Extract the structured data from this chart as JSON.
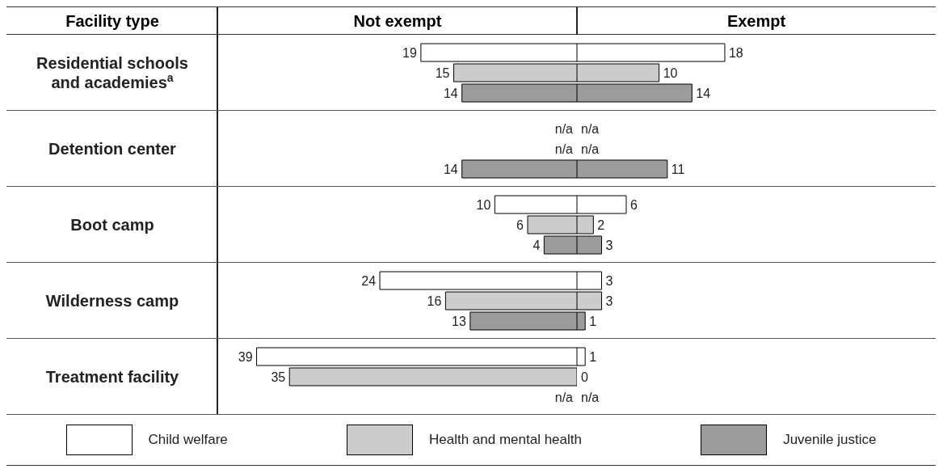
{
  "chart_data": [
    {
      "type": "bar",
      "orientation": "horizontal",
      "title": "Not exempt",
      "ylabel": "Facility type",
      "tick_labels": "y",
      "legend": "bottom",
      "categories": [
        "Residential schools and academies$^{a}$",
        "Detention center",
        "Boot camp",
        "Wilderness camp",
        "Treatment facility"
      ],
      "series": [
        {
          "name": "Child welfare",
          "color": "#ffffff",
          "values": [
            19,
            null,
            10,
            24,
            39
          ],
          "value_labels": [
            "19",
            "n/a",
            "10",
            "24",
            "39"
          ]
        },
        {
          "name": "Health and mental health",
          "color": "#cccccc",
          "values": [
            15,
            null,
            6,
            16,
            35
          ],
          "value_labels": [
            "15",
            "n/a",
            "6",
            "16",
            "35"
          ]
        },
        {
          "name": "Juvenile justice",
          "color": "#9c9c9c",
          "values": [
            14,
            14,
            4,
            13,
            null
          ],
          "value_labels": [
            "14",
            "14",
            "4",
            "13",
            "n/a"
          ]
        }
      ]
    },
    {
      "type": "bar",
      "orientation": "horizontal",
      "title": "Exempt",
      "tick_labels": false,
      "series": [
        {
          "color": "#ffffff",
          "values": [
            18,
            null,
            6,
            3,
            1
          ],
          "value_labels": [
            "18",
            "n/a",
            "6",
            "3",
            "1"
          ]
        },
        {
          "color": "#cccccc",
          "values": [
            10,
            null,
            2,
            3,
            0
          ],
          "value_labels": [
            "10",
            "n/a",
            "2",
            "3",
            "0"
          ]
        },
        {
          "color": "#9c9c9c",
          "values": [
            14,
            11,
            3,
            1,
            null
          ],
          "value_labels": [
            "14",
            "11",
            "3",
            "1",
            "n/a"
          ]
        }
      ]
    }
  ]
}
